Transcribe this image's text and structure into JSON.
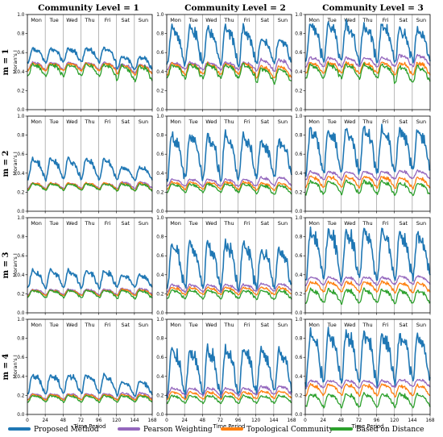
{
  "figure": {
    "col_titles": [
      "Community Level = 1",
      "Community Level = 2",
      "Community Level = 3"
    ],
    "row_titles": [
      "m = 1",
      "m = 2",
      "m = 3",
      "m = 4"
    ],
    "ylabel": "Moran's I",
    "xlabel": "Time Period"
  },
  "legend": {
    "entries": [
      {
        "name": "Proposed Method",
        "color": "#1f77b4"
      },
      {
        "name": "Pearson Weighting",
        "color": "#9467bd"
      },
      {
        "name": "Topological Community",
        "color": "#ff7f0e"
      },
      {
        "name": "Based on Distance",
        "color": "#2ca02c"
      }
    ]
  },
  "chart_data": {
    "type": "line",
    "x_range": [
      0,
      168
    ],
    "y_range": [
      0,
      1.0
    ],
    "x_ticks": [
      0,
      24,
      48,
      72,
      96,
      120,
      144,
      168
    ],
    "y_ticks": [
      0.0,
      0.2,
      0.4,
      0.6,
      0.8,
      1.0
    ],
    "days": [
      "Mon",
      "Tue",
      "Wed",
      "Thu",
      "Fri",
      "Sat",
      "Sun"
    ],
    "grid": false,
    "legend_position": "bottom",
    "panels": [
      {
        "row": 1,
        "col": 1,
        "series": [
          {
            "name": "Proposed Method",
            "weekday_peak": 0.65,
            "weekday_trough": 0.5,
            "weekend_peak": 0.56,
            "weekend_trough": 0.42
          },
          {
            "name": "Pearson Weighting",
            "weekday_peak": 0.5,
            "weekday_trough": 0.42,
            "weekend_peak": 0.48,
            "weekend_trough": 0.38
          },
          {
            "name": "Topological Community",
            "weekday_peak": 0.49,
            "weekday_trough": 0.41,
            "weekend_peak": 0.47,
            "weekend_trough": 0.37
          },
          {
            "name": "Based on Distance",
            "weekday_peak": 0.48,
            "weekday_trough": 0.35,
            "weekend_peak": 0.47,
            "weekend_trough": 0.3
          }
        ]
      },
      {
        "row": 1,
        "col": 2,
        "series": [
          {
            "name": "Proposed Method",
            "weekday_peak": 0.87,
            "weekday_trough": 0.47,
            "weekend_peak": 0.75,
            "weekend_trough": 0.48
          },
          {
            "name": "Pearson Weighting",
            "weekday_peak": 0.5,
            "weekday_trough": 0.42,
            "weekend_peak": 0.53,
            "weekend_trough": 0.4
          },
          {
            "name": "Topological Community",
            "weekday_peak": 0.49,
            "weekday_trough": 0.37,
            "weekend_peak": 0.46,
            "weekend_trough": 0.33
          },
          {
            "name": "Based on Distance",
            "weekday_peak": 0.48,
            "weekday_trough": 0.33,
            "weekend_peak": 0.44,
            "weekend_trough": 0.28
          }
        ]
      },
      {
        "row": 1,
        "col": 3,
        "series": [
          {
            "name": "Proposed Method",
            "weekday_peak": 0.91,
            "weekday_trough": 0.5,
            "weekend_peak": 0.85,
            "weekend_trough": 0.5
          },
          {
            "name": "Pearson Weighting",
            "weekday_peak": 0.55,
            "weekday_trough": 0.45,
            "weekend_peak": 0.58,
            "weekend_trough": 0.45
          },
          {
            "name": "Topological Community",
            "weekday_peak": 0.5,
            "weekday_trough": 0.38,
            "weekend_peak": 0.5,
            "weekend_trough": 0.36
          },
          {
            "name": "Based on Distance",
            "weekday_peak": 0.48,
            "weekday_trough": 0.33,
            "weekend_peak": 0.46,
            "weekend_trough": 0.28
          }
        ]
      },
      {
        "row": 2,
        "col": 1,
        "series": [
          {
            "name": "Proposed Method",
            "weekday_peak": 0.56,
            "weekday_trough": 0.33,
            "weekend_peak": 0.47,
            "weekend_trough": 0.33
          },
          {
            "name": "Pearson Weighting",
            "weekday_peak": 0.3,
            "weekday_trough": 0.24,
            "weekend_peak": 0.31,
            "weekend_trough": 0.24
          },
          {
            "name": "Topological Community",
            "weekday_peak": 0.3,
            "weekday_trough": 0.23,
            "weekend_peak": 0.3,
            "weekend_trough": 0.22
          },
          {
            "name": "Based on Distance",
            "weekday_peak": 0.29,
            "weekday_trough": 0.22,
            "weekend_peak": 0.29,
            "weekend_trough": 0.21
          }
        ]
      },
      {
        "row": 2,
        "col": 2,
        "series": [
          {
            "name": "Proposed Method",
            "weekday_peak": 0.82,
            "weekday_trough": 0.33,
            "weekend_peak": 0.76,
            "weekend_trough": 0.34
          },
          {
            "name": "Pearson Weighting",
            "weekday_peak": 0.34,
            "weekday_trough": 0.26,
            "weekend_peak": 0.36,
            "weekend_trough": 0.27
          },
          {
            "name": "Topological Community",
            "weekday_peak": 0.31,
            "weekday_trough": 0.23,
            "weekend_peak": 0.3,
            "weekend_trough": 0.22
          },
          {
            "name": "Based on Distance",
            "weekday_peak": 0.29,
            "weekday_trough": 0.2,
            "weekend_peak": 0.28,
            "weekend_trough": 0.18
          }
        ]
      },
      {
        "row": 2,
        "col": 3,
        "series": [
          {
            "name": "Proposed Method",
            "weekday_peak": 0.88,
            "weekday_trough": 0.4,
            "weekend_peak": 0.86,
            "weekend_trough": 0.42
          },
          {
            "name": "Pearson Weighting",
            "weekday_peak": 0.42,
            "weekday_trough": 0.33,
            "weekend_peak": 0.43,
            "weekend_trough": 0.34
          },
          {
            "name": "Topological Community",
            "weekday_peak": 0.37,
            "weekday_trough": 0.25,
            "weekend_peak": 0.36,
            "weekend_trough": 0.24
          },
          {
            "name": "Based on Distance",
            "weekday_peak": 0.32,
            "weekday_trough": 0.18,
            "weekend_peak": 0.3,
            "weekend_trough": 0.17
          }
        ]
      },
      {
        "row": 3,
        "col": 1,
        "series": [
          {
            "name": "Proposed Method",
            "weekday_peak": 0.45,
            "weekday_trough": 0.26,
            "weekend_peak": 0.4,
            "weekend_trough": 0.27
          },
          {
            "name": "Pearson Weighting",
            "weekday_peak": 0.25,
            "weekday_trough": 0.19,
            "weekend_peak": 0.26,
            "weekend_trough": 0.19
          },
          {
            "name": "Topological Community",
            "weekday_peak": 0.24,
            "weekday_trough": 0.18,
            "weekend_peak": 0.25,
            "weekend_trough": 0.18
          },
          {
            "name": "Based on Distance",
            "weekday_peak": 0.24,
            "weekday_trough": 0.16,
            "weekend_peak": 0.24,
            "weekend_trough": 0.15
          }
        ]
      },
      {
        "row": 3,
        "col": 2,
        "series": [
          {
            "name": "Proposed Method",
            "weekday_peak": 0.74,
            "weekday_trough": 0.24,
            "weekend_peak": 0.68,
            "weekend_trough": 0.26
          },
          {
            "name": "Pearson Weighting",
            "weekday_peak": 0.3,
            "weekday_trough": 0.22,
            "weekend_peak": 0.31,
            "weekend_trough": 0.23
          },
          {
            "name": "Topological Community",
            "weekday_peak": 0.27,
            "weekday_trough": 0.19,
            "weekend_peak": 0.27,
            "weekend_trough": 0.19
          },
          {
            "name": "Based on Distance",
            "weekday_peak": 0.24,
            "weekday_trough": 0.15,
            "weekend_peak": 0.24,
            "weekend_trough": 0.14
          }
        ]
      },
      {
        "row": 3,
        "col": 3,
        "series": [
          {
            "name": "Proposed Method",
            "weekday_peak": 0.88,
            "weekday_trough": 0.34,
            "weekend_peak": 0.84,
            "weekend_trough": 0.36
          },
          {
            "name": "Pearson Weighting",
            "weekday_peak": 0.38,
            "weekday_trough": 0.29,
            "weekend_peak": 0.39,
            "weekend_trough": 0.3
          },
          {
            "name": "Topological Community",
            "weekday_peak": 0.33,
            "weekday_trough": 0.22,
            "weekend_peak": 0.32,
            "weekend_trough": 0.21
          },
          {
            "name": "Based on Distance",
            "weekday_peak": 0.25,
            "weekday_trough": 0.1,
            "weekend_peak": 0.24,
            "weekend_trough": 0.1
          }
        ]
      },
      {
        "row": 4,
        "col": 1,
        "series": [
          {
            "name": "Proposed Method",
            "weekday_peak": 0.42,
            "weekday_trough": 0.22,
            "weekend_peak": 0.35,
            "weekend_trough": 0.2
          },
          {
            "name": "Pearson Weighting",
            "weekday_peak": 0.22,
            "weekday_trough": 0.16,
            "weekend_peak": 0.23,
            "weekend_trough": 0.16
          },
          {
            "name": "Topological Community",
            "weekday_peak": 0.21,
            "weekday_trough": 0.15,
            "weekend_peak": 0.21,
            "weekend_trough": 0.15
          },
          {
            "name": "Based on Distance",
            "weekday_peak": 0.2,
            "weekday_trough": 0.13,
            "weekend_peak": 0.2,
            "weekend_trough": 0.13
          }
        ]
      },
      {
        "row": 4,
        "col": 2,
        "series": [
          {
            "name": "Proposed Method",
            "weekday_peak": 0.7,
            "weekday_trough": 0.2,
            "weekend_peak": 0.68,
            "weekend_trough": 0.24
          },
          {
            "name": "Pearson Weighting",
            "weekday_peak": 0.28,
            "weekday_trough": 0.2,
            "weekend_peak": 0.3,
            "weekend_trough": 0.21
          },
          {
            "name": "Topological Community",
            "weekday_peak": 0.24,
            "weekday_trough": 0.16,
            "weekend_peak": 0.25,
            "weekend_trough": 0.17
          },
          {
            "name": "Based on Distance",
            "weekday_peak": 0.2,
            "weekday_trough": 0.12,
            "weekend_peak": 0.2,
            "weekend_trough": 0.12
          }
        ]
      },
      {
        "row": 4,
        "col": 3,
        "series": [
          {
            "name": "Proposed Method",
            "weekday_peak": 0.87,
            "weekday_trough": 0.32,
            "weekend_peak": 0.84,
            "weekend_trough": 0.34
          },
          {
            "name": "Pearson Weighting",
            "weekday_peak": 0.36,
            "weekday_trough": 0.28,
            "weekend_peak": 0.37,
            "weekend_trough": 0.29
          },
          {
            "name": "Topological Community",
            "weekday_peak": 0.32,
            "weekday_trough": 0.2,
            "weekend_peak": 0.31,
            "weekend_trough": 0.19
          },
          {
            "name": "Based on Distance",
            "weekday_peak": 0.22,
            "weekday_trough": 0.08,
            "weekend_peak": 0.22,
            "weekend_trough": 0.08
          }
        ]
      }
    ]
  }
}
